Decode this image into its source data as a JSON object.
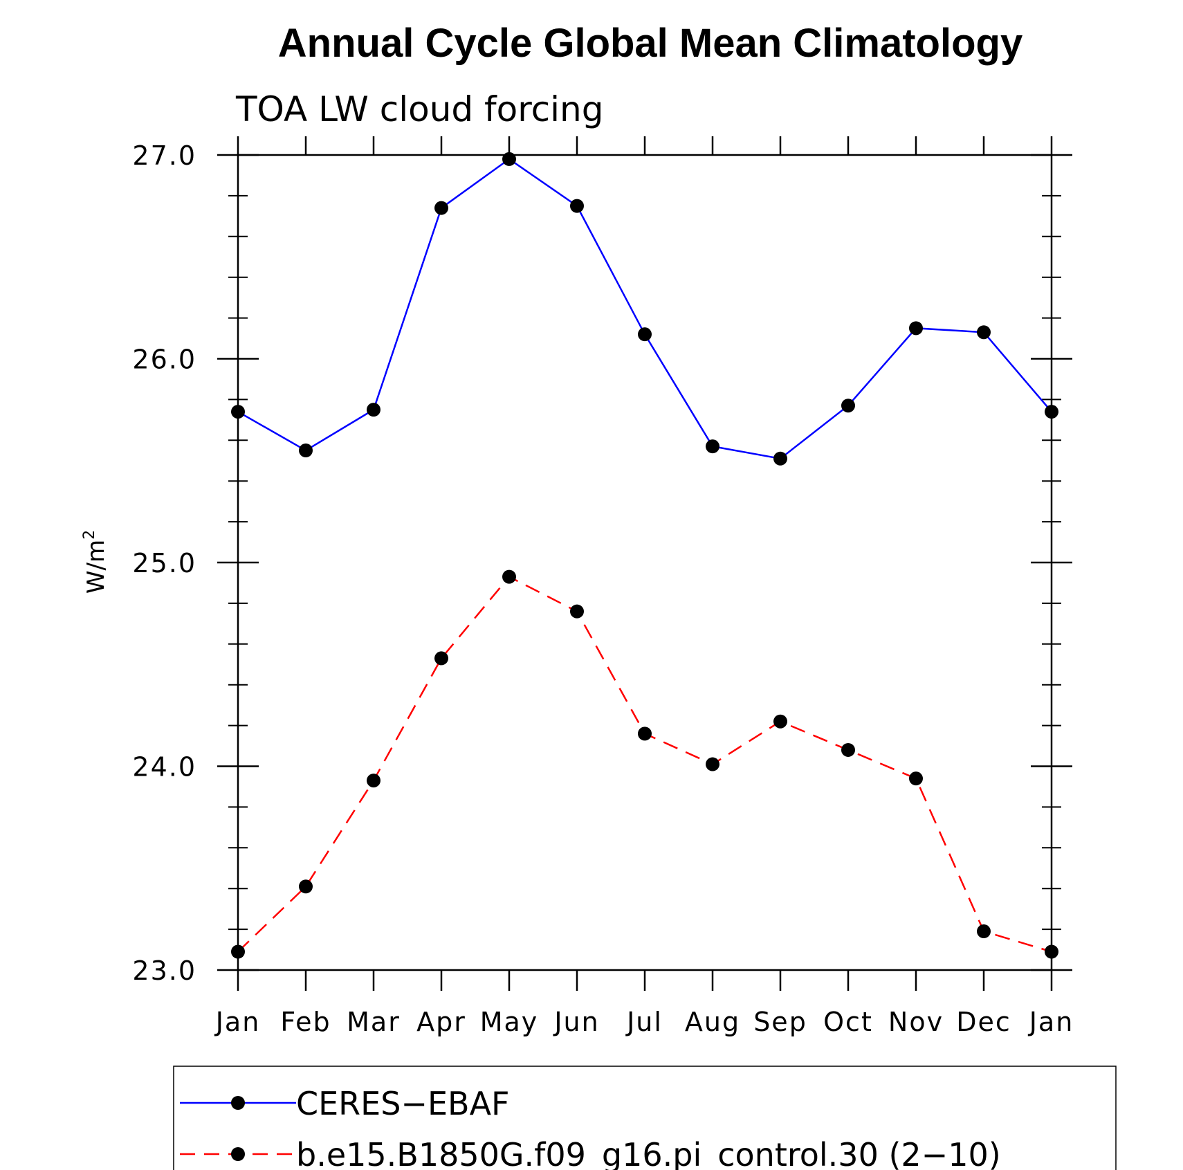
{
  "chart_data": {
    "type": "line",
    "title": "Annual Cycle Global Mean Climatology",
    "subtitle": "TOA LW cloud forcing",
    "ylabel": "W/m",
    "ylabel_superscript": "2",
    "xlabel": "",
    "categories": [
      "Jan",
      "Feb",
      "Mar",
      "Apr",
      "May",
      "Jun",
      "Jul",
      "Aug",
      "Sep",
      "Oct",
      "Nov",
      "Dec",
      "Jan"
    ],
    "ylim": [
      23.0,
      27.0
    ],
    "yticks": [
      "23.0",
      "24.0",
      "25.0",
      "26.0",
      "27.0"
    ],
    "series": [
      {
        "name": "CERES−EBAF",
        "color": "#0000ff",
        "dash": "solid",
        "values": [
          25.74,
          25.55,
          25.75,
          26.74,
          26.98,
          26.75,
          26.12,
          25.57,
          25.51,
          25.77,
          26.15,
          26.13,
          25.74
        ]
      },
      {
        "name": "b.e15.B1850G.f09_g16.pi_control.30 (2−10)",
        "color": "#ff0000",
        "dash": "dashed",
        "values": [
          23.09,
          23.41,
          23.93,
          24.53,
          24.93,
          24.76,
          24.16,
          24.01,
          24.22,
          24.08,
          23.94,
          23.19,
          23.09
        ]
      }
    ],
    "legend_position": "bottom",
    "marker_color": "#000000"
  }
}
